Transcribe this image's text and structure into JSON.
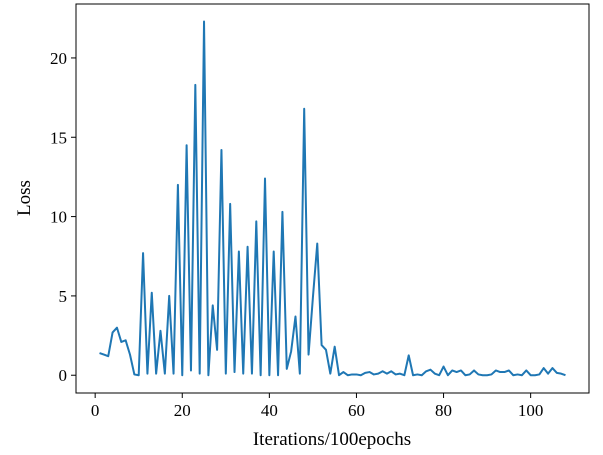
{
  "chart_data": {
    "type": "line",
    "title": "",
    "xlabel": "Iterations/100epochs",
    "ylabel": "Loss",
    "xlim": [
      -4.4,
      113.4
    ],
    "ylim": [
      -1.12,
      23.4
    ],
    "xticks": [
      0,
      20,
      40,
      60,
      80,
      100
    ],
    "yticks": [
      0,
      5,
      10,
      15,
      20
    ],
    "grid": false,
    "legend": "none",
    "series": [
      {
        "color": "#1f77b4",
        "x": [
          1,
          2,
          3,
          4,
          5,
          6,
          7,
          8,
          9,
          10,
          11,
          12,
          13,
          14,
          15,
          16,
          17,
          18,
          19,
          20,
          21,
          22,
          23,
          24,
          25,
          26,
          27,
          28,
          29,
          30,
          31,
          32,
          33,
          34,
          35,
          36,
          37,
          38,
          39,
          40,
          41,
          42,
          43,
          44,
          45,
          46,
          47,
          48,
          49,
          50,
          51,
          52,
          53,
          54,
          55,
          56,
          57,
          58,
          59,
          60,
          61,
          62,
          63,
          64,
          65,
          66,
          67,
          68,
          69,
          70,
          71,
          72,
          73,
          74,
          75,
          76,
          77,
          78,
          79,
          80,
          81,
          82,
          83,
          84,
          85,
          86,
          87,
          88,
          89,
          90,
          91,
          92,
          93,
          94,
          95,
          96,
          97,
          98,
          99,
          100,
          101,
          102,
          103,
          104,
          105,
          106,
          107,
          108
        ],
        "y": [
          1.4,
          1.3,
          1.2,
          2.7,
          3.0,
          2.1,
          2.2,
          1.3,
          0.05,
          0.0,
          7.7,
          0.1,
          5.2,
          0.1,
          2.8,
          0.1,
          5.0,
          0.1,
          12.0,
          0.0,
          14.5,
          0.3,
          18.3,
          0.1,
          22.3,
          0.0,
          4.4,
          1.6,
          14.2,
          0.1,
          10.8,
          0.2,
          7.8,
          0.1,
          8.1,
          0.1,
          9.7,
          0.0,
          12.4,
          0.0,
          7.8,
          0.0,
          10.3,
          0.4,
          1.5,
          3.7,
          0.1,
          16.8,
          1.3,
          4.9,
          8.3,
          1.9,
          1.6,
          0.1,
          1.8,
          0.0,
          0.2,
          0.0,
          0.05,
          0.05,
          0.0,
          0.15,
          0.2,
          0.05,
          0.1,
          0.25,
          0.1,
          0.25,
          0.05,
          0.1,
          0.0,
          1.25,
          0.0,
          0.05,
          0.0,
          0.25,
          0.35,
          0.1,
          0.0,
          0.55,
          0.0,
          0.3,
          0.2,
          0.3,
          0.0,
          0.05,
          0.3,
          0.05,
          0.0,
          0.0,
          0.05,
          0.3,
          0.2,
          0.2,
          0.3,
          0.0,
          0.05,
          0.0,
          0.3,
          0.0,
          0.0,
          0.05,
          0.45,
          0.1,
          0.45,
          0.15,
          0.1,
          0.0
        ]
      }
    ]
  }
}
